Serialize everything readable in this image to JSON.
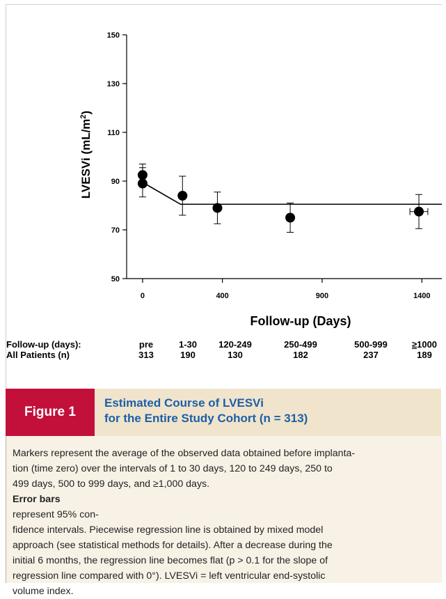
{
  "chart_data": {
    "type": "scatter",
    "title": "",
    "xlabel": "Follow-up (Days)",
    "ylabel": "LVESVi (mL/m²)",
    "ylabel_main": "LVESVi (mL/m",
    "ylabel_sup": "2",
    "ylabel_close": ")",
    "xlim": [
      -80,
      1500
    ],
    "ylim": [
      50,
      150
    ],
    "xticks": [
      0,
      400,
      900,
      1400
    ],
    "yticks": [
      50,
      70,
      90,
      110,
      130,
      150
    ],
    "grid": false,
    "points": [
      {
        "x": 0,
        "y": 92.5,
        "ylow": 88.5,
        "yhigh": 97.0,
        "xlow": null,
        "xhigh": null
      },
      {
        "x": 0,
        "y": 89.0,
        "ylow": 83.5,
        "yhigh": 95.5,
        "xlow": null,
        "xhigh": null
      },
      {
        "x": 200,
        "y": 84.0,
        "ylow": 76.0,
        "yhigh": 92.0,
        "xlow": null,
        "xhigh": null
      },
      {
        "x": 375,
        "y": 79.0,
        "ylow": 72.5,
        "yhigh": 85.5,
        "xlow": null,
        "xhigh": null
      },
      {
        "x": 740,
        "y": 75.0,
        "ylow": 69.0,
        "yhigh": 81.0,
        "xlow": null,
        "xhigh": null
      },
      {
        "x": 1385,
        "y": 77.5,
        "ylow": 70.5,
        "yhigh": 84.5,
        "xlow": 1340,
        "xhigh": 1430
      }
    ],
    "regression_line": [
      {
        "x": 0,
        "y": 89.5
      },
      {
        "x": 190,
        "y": 80.5
      },
      {
        "x": 1500,
        "y": 80.5
      }
    ]
  },
  "table": {
    "row1_label": "Follow-up (days):",
    "row2_label": "All Patients (n)",
    "columns": [
      {
        "interval": "pre",
        "n": "313"
      },
      {
        "interval": "1-30",
        "n": "190"
      },
      {
        "interval": "120-249",
        "n": "130"
      },
      {
        "interval": "250-499",
        "n": "182"
      },
      {
        "interval": "500-999",
        "n": "237"
      },
      {
        "interval_prefix": "≥",
        "interval": "1000",
        "n": "189"
      }
    ]
  },
  "figure": {
    "label": "Figure 1",
    "title_line1": "Estimated Course of LVESVi",
    "title_line2": "for the Entire Study Cohort (n = 313)",
    "caption_lines": [
      {
        "pre": "Markers represent the average of the observed data obtained before implanta-",
        "bold": "",
        "post": ""
      },
      {
        "pre": "tion (time zero) over the intervals of 1 to 30 days, 120 to 249 days, 250 to",
        "bold": "",
        "post": ""
      },
      {
        "pre": "499 days, 500 to 999 days, and ≥1,000 days. ",
        "bold": "Error bars",
        "post": " represent 95% con-"
      },
      {
        "pre": "fidence intervals. Piecewise regression line is obtained by mixed model",
        "bold": "",
        "post": ""
      },
      {
        "pre": "approach (see statistical methods for details). After a decrease during the",
        "bold": "",
        "post": ""
      },
      {
        "pre": "initial 6 months, the regression line becomes flat (p > 0.1 for the slope of",
        "bold": "",
        "post": ""
      },
      {
        "pre": "regression line compared with 0°). LVESVi = left ventricular end-systolic",
        "bold": "",
        "post": ""
      },
      {
        "pre": "volume index.",
        "bold": "",
        "post": ""
      }
    ]
  },
  "colors": {
    "figure_label_bg": "#c2103b",
    "title_color": "#1d5fa7",
    "header_bg": "#f0e4cc",
    "caption_bg": "#f8f2e6"
  }
}
